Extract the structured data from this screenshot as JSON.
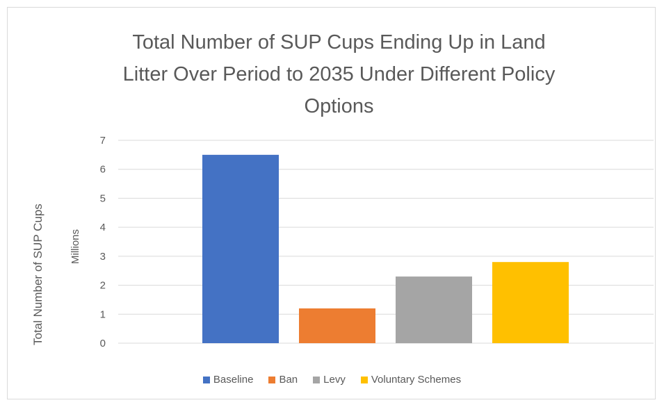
{
  "chart_data": {
    "type": "bar",
    "title_lines": [
      "Total Number of SUP Cups Ending Up in Land",
      "Litter Over Period to 2035 Under Different Policy",
      "Options"
    ],
    "ylabel": "Total Number of SUP Cups",
    "y_units": "Millions",
    "ylim": [
      0,
      7
    ],
    "yticks": [
      0,
      1,
      2,
      3,
      4,
      5,
      6,
      7
    ],
    "grid": true,
    "legend_position": "bottom",
    "series": [
      {
        "name": "Baseline",
        "value": 6.5,
        "color": "#4472c4"
      },
      {
        "name": "Ban",
        "value": 1.2,
        "color": "#ed7d31"
      },
      {
        "name": "Levy",
        "value": 2.3,
        "color": "#a5a5a5"
      },
      {
        "name": "Voluntary Schemes",
        "value": 2.8,
        "color": "#ffc000"
      }
    ]
  }
}
